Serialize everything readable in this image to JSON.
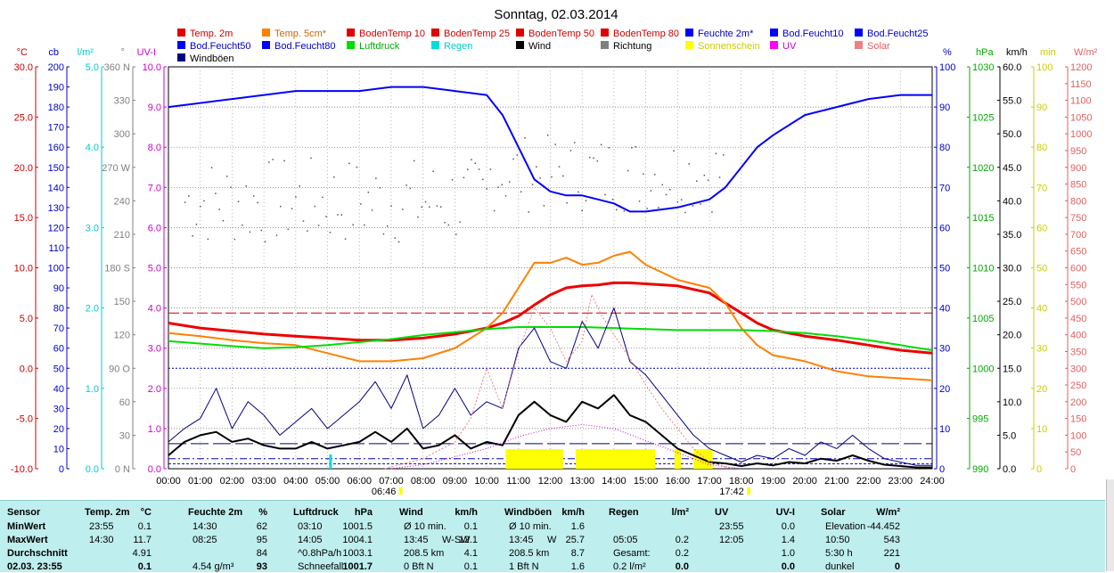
{
  "chart_data": {
    "type": "line",
    "title": "Sonntag, 02.03.2014",
    "x_ticks": [
      "00:00",
      "01:00",
      "02:00",
      "03:00",
      "04:00",
      "05:00",
      "06:00",
      "07:00",
      "08:00",
      "09:00",
      "10:00",
      "11:00",
      "12:00",
      "13:00",
      "14:00",
      "15:00",
      "16:00",
      "17:00",
      "18:00",
      "19:00",
      "20:00",
      "21:00",
      "22:00",
      "23:00",
      "24:00"
    ],
    "sunrise": "06:46",
    "sunset": "17:42",
    "legend": [
      {
        "label": "Temp. 2m",
        "color": "#e00000"
      },
      {
        "label": "Temp. 5cm*",
        "color": "#ff8000"
      },
      {
        "label": "BodenTemp 10",
        "color": "#e00000"
      },
      {
        "label": "BodenTemp 25",
        "color": "#e00000"
      },
      {
        "label": "BodenTemp 50",
        "color": "#e00000"
      },
      {
        "label": "BodenTemp 80",
        "color": "#e00000"
      },
      {
        "label": "Feuchte 2m*",
        "color": "#0000ff"
      },
      {
        "label": "Bod.Feucht10",
        "color": "#0000ff"
      },
      {
        "label": "Bod.Feucht25",
        "color": "#0000ff"
      },
      {
        "label": "Bod.Feucht50",
        "color": "#0000ff"
      },
      {
        "label": "Bod.Feucht80",
        "color": "#0000ff"
      },
      {
        "label": "Luftdruck",
        "color": "#00dd00"
      },
      {
        "label": "Regen",
        "color": "#00dddd"
      },
      {
        "label": "Wind",
        "color": "#000000"
      },
      {
        "label": "Richtung",
        "color": "#808080"
      },
      {
        "label": "Sonnenschein",
        "color": "#ffff00"
      },
      {
        "label": "UV",
        "color": "#ff00ff"
      },
      {
        "label": "Solar",
        "color": "#f08080"
      },
      {
        "label": "Windböen",
        "color": "#000080"
      }
    ],
    "axes": {
      "temp": {
        "unit": "°C",
        "color": "#cc0000",
        "min": -10,
        "max": 30,
        "ticks": [
          "30.0",
          "25.0",
          "20.0",
          "15.0",
          "10.0",
          "5.0",
          "0.0",
          "-5.0",
          "-10.0"
        ]
      },
      "cb": {
        "unit": "cb",
        "color": "#0000cc",
        "min": 0,
        "max": 200,
        "ticks": [
          "200",
          "190",
          "180",
          "170",
          "160",
          "150",
          "140",
          "130",
          "120",
          "110",
          "100",
          "90",
          "80",
          "70",
          "60",
          "50",
          "40",
          "30",
          "20",
          "10",
          "0"
        ]
      },
      "rain": {
        "unit": "l/m²",
        "color": "#00cccc",
        "min": 0,
        "max": 5,
        "ticks": [
          "5.0",
          "4.0",
          "3.0",
          "2.0",
          "1.0",
          "0.0"
        ]
      },
      "dir": {
        "unit": "°",
        "color": "#808080",
        "ticks": [
          "360 N",
          "330",
          "300",
          "270 W",
          "240",
          "210",
          "180 S",
          "150",
          "120",
          "90 O",
          "60",
          "30",
          "0 N"
        ]
      },
      "uv": {
        "unit": "UV-I",
        "color": "#cc00cc",
        "min": 0,
        "max": 10,
        "ticks": [
          "10.0",
          "9.0",
          "8.0",
          "7.0",
          "6.0",
          "5.0",
          "4.0",
          "3.0",
          "2.0",
          "1.0",
          "0.0"
        ]
      },
      "humidity": {
        "unit": "%",
        "color": "#0000cc",
        "min": 0,
        "max": 100,
        "ticks": [
          "100",
          "90",
          "80",
          "70",
          "60",
          "50",
          "40",
          "30",
          "20",
          "10",
          "0"
        ]
      },
      "pressure": {
        "unit": "hPa",
        "color": "#00aa00",
        "min": 990,
        "max": 1030,
        "ticks": [
          "1030",
          "1025",
          "1020",
          "1015",
          "1010",
          "1005",
          "1000",
          "995",
          "990"
        ]
      },
      "wind": {
        "unit": "km/h",
        "color": "#000000",
        "min": 0,
        "max": 60,
        "ticks": [
          "60.0",
          "55.0",
          "50.0",
          "45.0",
          "40.0",
          "35.0",
          "30.0",
          "25.0",
          "20.0",
          "15.0",
          "10.0",
          "5.0",
          "0.0"
        ]
      },
      "sun": {
        "unit": "min",
        "color": "#cccc00",
        "min": 0,
        "max": 100,
        "ticks": [
          "100",
          "90",
          "80",
          "70",
          "60",
          "50",
          "40",
          "30",
          "20",
          "10",
          "0"
        ]
      },
      "solar": {
        "unit": "W/m²",
        "color": "#e06060",
        "min": 0,
        "max": 1200,
        "ticks": [
          "1200",
          "1150",
          "1100",
          "1050",
          "1000",
          "950",
          "900",
          "850",
          "800",
          "750",
          "700",
          "650",
          "600",
          "550",
          "500",
          "450",
          "400",
          "350",
          "300",
          "250",
          "200",
          "150",
          "100",
          "50",
          "0"
        ]
      }
    },
    "series": [
      {
        "name": "Feuchte 2m*",
        "axis": "humidity",
        "color": "#0000ff",
        "x": [
          0,
          1,
          2,
          3,
          4,
          5,
          6,
          7,
          8,
          9,
          10,
          10.5,
          11,
          11.5,
          12,
          12.5,
          13,
          13.5,
          14,
          14.5,
          15,
          16,
          17,
          17.5,
          18,
          18.5,
          19,
          20,
          21,
          22,
          23,
          24
        ],
        "y": [
          90,
          91,
          92,
          93,
          94,
          94,
          94,
          95,
          95,
          94,
          93,
          88,
          80,
          72,
          69,
          68,
          68,
          67,
          66,
          64,
          64,
          65,
          67,
          70,
          75,
          80,
          83,
          88,
          90,
          92,
          93,
          93
        ]
      },
      {
        "name": "Temp. 2m",
        "axis": "temp",
        "color": "#ee0000",
        "x": [
          0,
          1,
          2,
          3,
          4,
          5,
          6,
          7,
          8,
          9,
          10,
          10.5,
          11,
          11.5,
          12,
          12.5,
          13,
          13.5,
          14,
          14.5,
          15,
          16,
          17,
          17.5,
          18,
          18.5,
          19,
          20,
          21,
          22,
          23,
          24
        ],
        "y": [
          4.5,
          4,
          3.7,
          3.4,
          3.2,
          3,
          2.8,
          2.8,
          3,
          3.4,
          4,
          4.5,
          5.2,
          6.3,
          7.3,
          8,
          8.2,
          8.3,
          8.5,
          8.5,
          8.4,
          8.2,
          7.5,
          6.5,
          5.5,
          4.5,
          3.8,
          3.2,
          2.8,
          2.3,
          1.8,
          1.5
        ]
      },
      {
        "name": "Temp. 5cm*",
        "axis": "temp",
        "color": "#ff8000",
        "x": [
          0,
          1,
          2,
          3,
          4,
          5,
          6,
          7,
          8,
          9,
          10,
          10.5,
          11,
          11.5,
          12,
          12.5,
          13,
          13.5,
          14,
          14.5,
          15,
          16,
          17,
          17.5,
          18,
          18.5,
          19,
          20,
          21,
          22,
          23,
          24
        ],
        "y": [
          3.5,
          3.2,
          2.8,
          2.5,
          2.3,
          1.5,
          0.7,
          0.7,
          1,
          2,
          4,
          5.5,
          8,
          10.5,
          10.5,
          11,
          10.3,
          10.5,
          11.2,
          11.6,
          10.3,
          8.8,
          8,
          6.5,
          4,
          2.3,
          1.3,
          0.7,
          -0.3,
          -0.8,
          -1,
          -1.2
        ]
      },
      {
        "name": "Luftdruck",
        "axis": "pressure",
        "color": "#00dd00",
        "x": [
          0,
          2,
          3,
          4,
          5,
          6,
          7,
          8,
          9,
          10,
          11,
          12,
          13,
          14,
          15,
          16,
          17,
          18,
          19,
          20,
          21,
          22,
          23,
          24
        ],
        "y": [
          1002.7,
          1002.2,
          1002,
          1002.1,
          1002.3,
          1002.6,
          1002.9,
          1003.3,
          1003.6,
          1003.9,
          1004.1,
          1004.1,
          1004.1,
          1004,
          1003.9,
          1003.8,
          1003.8,
          1003.8,
          1003.7,
          1003.5,
          1003.2,
          1002.8,
          1002.3,
          1001.8
        ]
      },
      {
        "name": "Windböen",
        "axis": "wind",
        "color": "#000080",
        "x": [
          0,
          0.5,
          1,
          1.5,
          2,
          2.5,
          3,
          3.5,
          4,
          4.5,
          5,
          5.5,
          6,
          6.5,
          7,
          7.5,
          8,
          8.5,
          9,
          9.5,
          10,
          10.5,
          11,
          11.5,
          12,
          12.5,
          13,
          13.5,
          14,
          14.5,
          15,
          15.5,
          16,
          16.5,
          17,
          17.5,
          18,
          18.5,
          19,
          19.5,
          20,
          20.5,
          21,
          21.5,
          22,
          22.5,
          23,
          23.5,
          24
        ],
        "y": [
          4,
          6,
          7.5,
          12,
          6,
          10,
          8,
          5,
          7,
          9,
          6,
          8,
          10,
          13,
          9,
          14,
          6,
          8,
          12,
          8,
          10,
          9,
          18,
          21,
          16,
          15,
          22,
          18,
          24,
          16,
          14,
          11,
          8,
          5,
          3,
          2,
          1,
          2,
          1.5,
          3,
          2,
          4,
          3,
          5,
          3,
          1.5,
          1,
          0.5,
          0.5
        ]
      },
      {
        "name": "Wind",
        "axis": "wind",
        "color": "#000000",
        "x": [
          0,
          0.5,
          1,
          1.5,
          2,
          2.5,
          3,
          3.5,
          4,
          4.5,
          5,
          5.5,
          6,
          6.5,
          7,
          7.5,
          8,
          8.5,
          9,
          9.5,
          10,
          10.5,
          11,
          11.5,
          12,
          12.5,
          13,
          13.5,
          14,
          14.5,
          15,
          15.5,
          16,
          16.5,
          17,
          17.5,
          18,
          18.5,
          19,
          19.5,
          20,
          20.5,
          21,
          21.5,
          22,
          22.5,
          23,
          23.5,
          24
        ],
        "y": [
          2,
          4,
          5,
          5.5,
          4,
          4.5,
          3.5,
          3,
          3,
          4,
          3,
          3.5,
          4,
          5.5,
          4,
          6,
          3,
          3.5,
          5,
          3,
          4,
          3.5,
          8,
          10,
          8,
          7,
          10,
          9,
          11,
          8,
          7,
          5,
          3,
          2,
          1,
          0.8,
          0.4,
          0.8,
          0.5,
          1,
          0.8,
          1.5,
          1.2,
          2,
          1.2,
          0.6,
          0.4,
          0.2,
          0.2
        ]
      },
      {
        "name": "Solar",
        "axis": "solar",
        "color": "#f08080",
        "x": [
          6.8,
          8,
          9,
          9.5,
          10,
          10.5,
          11,
          11.5,
          12,
          12.5,
          13,
          13.3,
          13.6,
          14,
          14.5,
          15,
          15.5,
          16,
          16.5,
          17,
          17.7
        ],
        "y": [
          0,
          30,
          80,
          150,
          300,
          180,
          350,
          480,
          420,
          320,
          380,
          520,
          460,
          400,
          330,
          250,
          180,
          120,
          60,
          20,
          0
        ]
      },
      {
        "name": "UV",
        "axis": "uv",
        "color": "#cc00cc",
        "x": [
          7,
          8,
          9,
          10,
          11,
          12,
          13,
          14,
          15,
          16,
          17,
          18
        ],
        "y": [
          0,
          0.1,
          0.3,
          0.5,
          0.8,
          1,
          1.1,
          1,
          0.7,
          0.4,
          0.1,
          0
        ]
      }
    ],
    "sunshine_blocks": [
      [
        10.6,
        12.4
      ],
      [
        12.8,
        15.3
      ],
      [
        15.9,
        16.1
      ],
      [
        16.5,
        17.1
      ]
    ],
    "table": {
      "headers": [
        {
          "label": "Sensor"
        },
        {
          "label": "Temp. 2m",
          "unit": "°C"
        },
        {
          "label": "Feuchte 2m",
          "unit": "%"
        },
        {
          "label": "Luftdruck",
          "unit": "hPa"
        },
        {
          "label": "Wind",
          "unit": "km/h"
        },
        {
          "label": "Windböen",
          "unit": "km/h"
        },
        {
          "label": "Regen",
          "unit": "l/m²"
        },
        {
          "label": "UV",
          "unit": "UV-I"
        },
        {
          "label": "Solar",
          "unit": "W/m²"
        }
      ],
      "rows": [
        {
          "label": "MinWert",
          "temp": [
            "23:55",
            "0.1"
          ],
          "hum": [
            "14:30",
            "62"
          ],
          "press": [
            "03:10",
            "1001.5"
          ],
          "wind": [
            "Ø 10 min.",
            "",
            "0.1"
          ],
          "gust": [
            "Ø 10 min.",
            "",
            "1.6"
          ],
          "rain": [
            "",
            ""
          ],
          "uv": [
            "23:55",
            "0.0"
          ],
          "solar": [
            "Elevation",
            "-44.452"
          ]
        },
        {
          "label": "MaxWert",
          "temp": [
            "14:30",
            "11.7"
          ],
          "hum": [
            "08:25",
            "95"
          ],
          "press": [
            "14:05",
            "1004.1"
          ],
          "wind": [
            "13:45",
            "W-SW",
            "12.1"
          ],
          "gust": [
            "13:45",
            "W",
            "25.7"
          ],
          "rain": [
            "05:05",
            "0.2"
          ],
          "uv": [
            "12:05",
            "1.4"
          ],
          "solar": [
            "10:50",
            "543"
          ]
        },
        {
          "label": "Durchschnitt",
          "temp": [
            "",
            "4.91"
          ],
          "hum": [
            "",
            "84"
          ],
          "press": [
            "^0.8hPa/h",
            "1003.1"
          ],
          "wind": [
            "208.5 km",
            "",
            "4.1"
          ],
          "gust": [
            "208.5 km",
            "",
            "8.7"
          ],
          "rain": [
            "Gesamt:",
            "0.2"
          ],
          "uv": [
            "",
            "1.0"
          ],
          "solar": [
            "5:30 h",
            "221"
          ]
        },
        {
          "label": "02.03. 23:55",
          "temp": [
            "",
            "0.1"
          ],
          "hum": [
            "4.54 g/m³",
            "93"
          ],
          "press": [
            "Schneefall",
            "1001.7"
          ],
          "wind": [
            "0 Bft N",
            "",
            "0.1"
          ],
          "gust": [
            "1 Bft N",
            "",
            "1.6"
          ],
          "rain": [
            "0.2 l/m²",
            "0.0"
          ],
          "uv": [
            "",
            "0.0"
          ],
          "solar": [
            "dunkel",
            "0"
          ]
        }
      ]
    }
  }
}
